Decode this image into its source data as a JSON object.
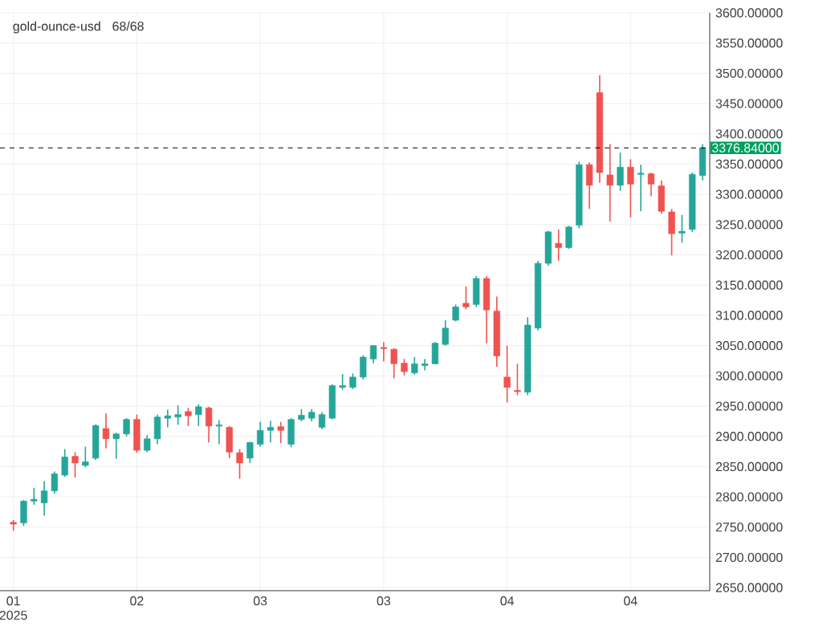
{
  "chart_data": {
    "type": "candlestick",
    "title": "gold-ounce-usd",
    "subtitle": "68/68",
    "categories": [
      "01 2025",
      null,
      null,
      null,
      null,
      null,
      null,
      null,
      null,
      null,
      null,
      null,
      "02",
      null,
      null,
      null,
      null,
      null,
      null,
      null,
      null,
      null,
      null,
      null,
      "03",
      null,
      null,
      null,
      null,
      null,
      null,
      null,
      null,
      null,
      null,
      null,
      "03",
      null,
      null,
      null,
      null,
      null,
      null,
      null,
      null,
      null,
      null,
      null,
      "04",
      null,
      null,
      null,
      null,
      null,
      null,
      null,
      null,
      null,
      null,
      null,
      "04",
      null,
      null,
      null,
      null,
      null,
      null,
      null
    ],
    "ohlc": [
      [
        2755,
        2762,
        2744,
        2758
      ],
      [
        2757,
        2795,
        2752,
        2793
      ],
      [
        2793,
        2815,
        2787,
        2796
      ],
      [
        2790,
        2826,
        2769,
        2810
      ],
      [
        2810,
        2842,
        2805,
        2838
      ],
      [
        2836,
        2879,
        2833,
        2866
      ],
      [
        2867,
        2874,
        2832,
        2856
      ],
      [
        2852,
        2883,
        2849,
        2858
      ],
      [
        2864,
        2920,
        2861,
        2918
      ],
      [
        2913,
        2938,
        2880,
        2896
      ],
      [
        2896,
        2906,
        2863,
        2904
      ],
      [
        2904,
        2930,
        2900,
        2928
      ],
      [
        2928,
        2936,
        2873,
        2877
      ],
      [
        2877,
        2902,
        2874,
        2896
      ],
      [
        2896,
        2936,
        2887,
        2932
      ],
      [
        2930,
        2944,
        2915,
        2934
      ],
      [
        2932,
        2951,
        2919,
        2936
      ],
      [
        2941,
        2947,
        2917,
        2934
      ],
      [
        2936,
        2953,
        2917,
        2949
      ],
      [
        2947,
        2949,
        2890,
        2917
      ],
      [
        2917,
        2927,
        2887,
        2919
      ],
      [
        2915,
        2917,
        2864,
        2874
      ],
      [
        2873,
        2879,
        2830,
        2856
      ],
      [
        2864,
        2891,
        2856,
        2890
      ],
      [
        2887,
        2924,
        2883,
        2910
      ],
      [
        2910,
        2926,
        2890,
        2915
      ],
      [
        2916,
        2924,
        2889,
        2910
      ],
      [
        2887,
        2930,
        2882,
        2928
      ],
      [
        2928,
        2945,
        2925,
        2935
      ],
      [
        2930,
        2945,
        2925,
        2940
      ],
      [
        2915,
        2940,
        2912,
        2936
      ],
      [
        2930,
        2986,
        2928,
        2984
      ],
      [
        2981,
        3003,
        2977,
        2984
      ],
      [
        2981,
        3004,
        2978,
        2998
      ],
      [
        2998,
        3034,
        2994,
        3031
      ],
      [
        3028,
        3051,
        3021,
        3050
      ],
      [
        3047,
        3056,
        3024,
        3045
      ],
      [
        3044,
        3046,
        2996,
        3020
      ],
      [
        3021,
        3028,
        3001,
        3007
      ],
      [
        3005,
        3031,
        3002,
        3020
      ],
      [
        3017,
        3028,
        3009,
        3020
      ],
      [
        3020,
        3056,
        3019,
        3054
      ],
      [
        3052,
        3092,
        3050,
        3079
      ],
      [
        3092,
        3118,
        3090,
        3114
      ],
      [
        3120,
        3148,
        3110,
        3114
      ],
      [
        3118,
        3165,
        3114,
        3161
      ],
      [
        3161,
        3165,
        3054,
        3109
      ],
      [
        3107,
        3131,
        3015,
        3033
      ],
      [
        2998,
        3050,
        2956,
        2981
      ],
      [
        2976,
        3020,
        2968,
        2974
      ],
      [
        2973,
        3097,
        2968,
        3084
      ],
      [
        3079,
        3190,
        3075,
        3186
      ],
      [
        3186,
        3240,
        3182,
        3238
      ],
      [
        3219,
        3242,
        3190,
        3212
      ],
      [
        3212,
        3248,
        3210,
        3246
      ],
      [
        3249,
        3354,
        3244,
        3349
      ],
      [
        3349,
        3353,
        3276,
        3315
      ],
      [
        3468,
        3497,
        3319,
        3336
      ],
      [
        3332,
        3383,
        3255,
        3315
      ],
      [
        3315,
        3369,
        3306,
        3345
      ],
      [
        3345,
        3358,
        3262,
        3317
      ],
      [
        3333,
        3349,
        3272,
        3335
      ],
      [
        3334,
        3336,
        3297,
        3317
      ],
      [
        3314,
        3323,
        3268,
        3272
      ],
      [
        3271,
        3276,
        3199,
        3235
      ],
      [
        3236,
        3266,
        3220,
        3239
      ],
      [
        3242,
        3336,
        3238,
        3333
      ],
      [
        3331,
        3383,
        3323,
        3376.84
      ]
    ],
    "colors": [
      "#ef5350",
      "#26a69a",
      "#26a69a",
      "#26a69a",
      "#26a69a",
      "#26a69a",
      "#ef5350",
      "#26a69a",
      "#26a69a",
      "#ef5350",
      "#26a69a",
      "#26a69a",
      "#ef5350",
      "#26a69a",
      "#26a69a",
      "#26a69a",
      "#26a69a",
      "#ef5350",
      "#26a69a",
      "#ef5350",
      "#26a69a",
      "#ef5350",
      "#ef5350",
      "#26a69a",
      "#26a69a",
      "#26a69a",
      "#ef5350",
      "#26a69a",
      "#26a69a",
      "#26a69a",
      "#26a69a",
      "#26a69a",
      "#26a69a",
      "#26a69a",
      "#26a69a",
      "#26a69a",
      "#ef5350",
      "#ef5350",
      "#ef5350",
      "#26a69a",
      "#26a69a",
      "#26a69a",
      "#26a69a",
      "#26a69a",
      "#ef5350",
      "#26a69a",
      "#ef5350",
      "#ef5350",
      "#ef5350",
      "#ef5350",
      "#26a69a",
      "#26a69a",
      "#26a69a",
      "#ef5350",
      "#26a69a",
      "#26a69a",
      "#ef5350",
      "#ef5350",
      "#ef5350",
      "#26a69a",
      "#ef5350",
      "#26a69a",
      "#ef5350",
      "#ef5350",
      "#ef5350",
      "#26a69a",
      "#26a69a",
      "#26a69a"
    ],
    "ylim": [
      2645,
      3600
    ],
    "yticks": [
      {
        "value": 2650,
        "label": "2650.00000"
      },
      {
        "value": 2700,
        "label": "2700.00000"
      },
      {
        "value": 2750,
        "label": "2750.00000"
      },
      {
        "value": 2800,
        "label": "2800.00000"
      },
      {
        "value": 2850,
        "label": "2850.00000"
      },
      {
        "value": 2900,
        "label": "2900.00000"
      },
      {
        "value": 2950,
        "label": "2950.00000"
      },
      {
        "value": 3000,
        "label": "3000.00000"
      },
      {
        "value": 3050,
        "label": "3050.00000"
      },
      {
        "value": 3100,
        "label": "3100.00000"
      },
      {
        "value": 3150,
        "label": "3150.00000"
      },
      {
        "value": 3200,
        "label": "3200.00000"
      },
      {
        "value": 3250,
        "label": "3250.00000"
      },
      {
        "value": 3300,
        "label": "3300.00000"
      },
      {
        "value": 3350,
        "label": "3350.00000"
      },
      {
        "value": 3400,
        "label": "3400.00000"
      },
      {
        "value": 3450,
        "label": "3450.00000"
      },
      {
        "value": 3500,
        "label": "3500.00000"
      },
      {
        "value": 3550,
        "label": "3550.00000"
      },
      {
        "value": 3600,
        "label": "3600.00000"
      }
    ],
    "grid": true,
    "ref_lines": [
      {
        "axis": "y",
        "value": 3376.84,
        "label": "3376.84000",
        "line_style": "dashed"
      }
    ]
  }
}
